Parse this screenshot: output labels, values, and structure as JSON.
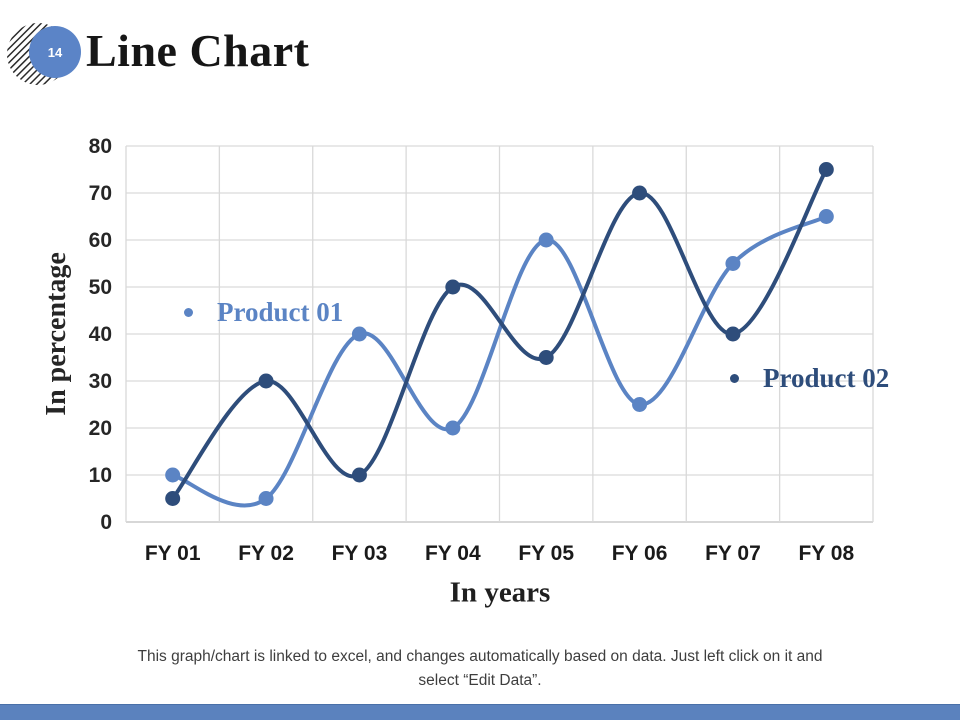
{
  "slide": {
    "number": "14",
    "title": "Line Chart"
  },
  "chart_data": {
    "type": "line",
    "categories": [
      "FY 01",
      "FY 02",
      "FY 03",
      "FY 04",
      "FY 05",
      "FY 06",
      "FY 07",
      "FY 08"
    ],
    "series": [
      {
        "name": "Product 01",
        "values": [
          10,
          5,
          40,
          20,
          60,
          25,
          55,
          65
        ],
        "color": "#5B84C4"
      },
      {
        "name": "Product 02",
        "values": [
          5,
          30,
          10,
          50,
          35,
          70,
          40,
          75
        ],
        "color": "#2E4D7B"
      }
    ],
    "title": "Line Chart",
    "xlabel": "In years",
    "ylabel": "In percentage",
    "ylim": [
      0,
      80
    ],
    "ytick_step": 10,
    "grid": true,
    "smooth_lines": true,
    "markers": true,
    "legend_position": "inline-annotations"
  },
  "footnote": {
    "line1": "This graph/chart is linked to excel, and changes automatically based on data. Just left click on it and",
    "line2": "select “Edit Data”."
  },
  "footer": {
    "bar_color": "#5B82BE",
    "bar_edge_color": "#4A70A8"
  },
  "colors": {
    "badge_fill": "#5B84C7",
    "badge_number_text": "#FFFFFF",
    "hatch_stripes": "#2B2B2B",
    "gridline": "#D9D9D9",
    "axis_line": "#BFBFBF",
    "tick_label": "#262626"
  }
}
